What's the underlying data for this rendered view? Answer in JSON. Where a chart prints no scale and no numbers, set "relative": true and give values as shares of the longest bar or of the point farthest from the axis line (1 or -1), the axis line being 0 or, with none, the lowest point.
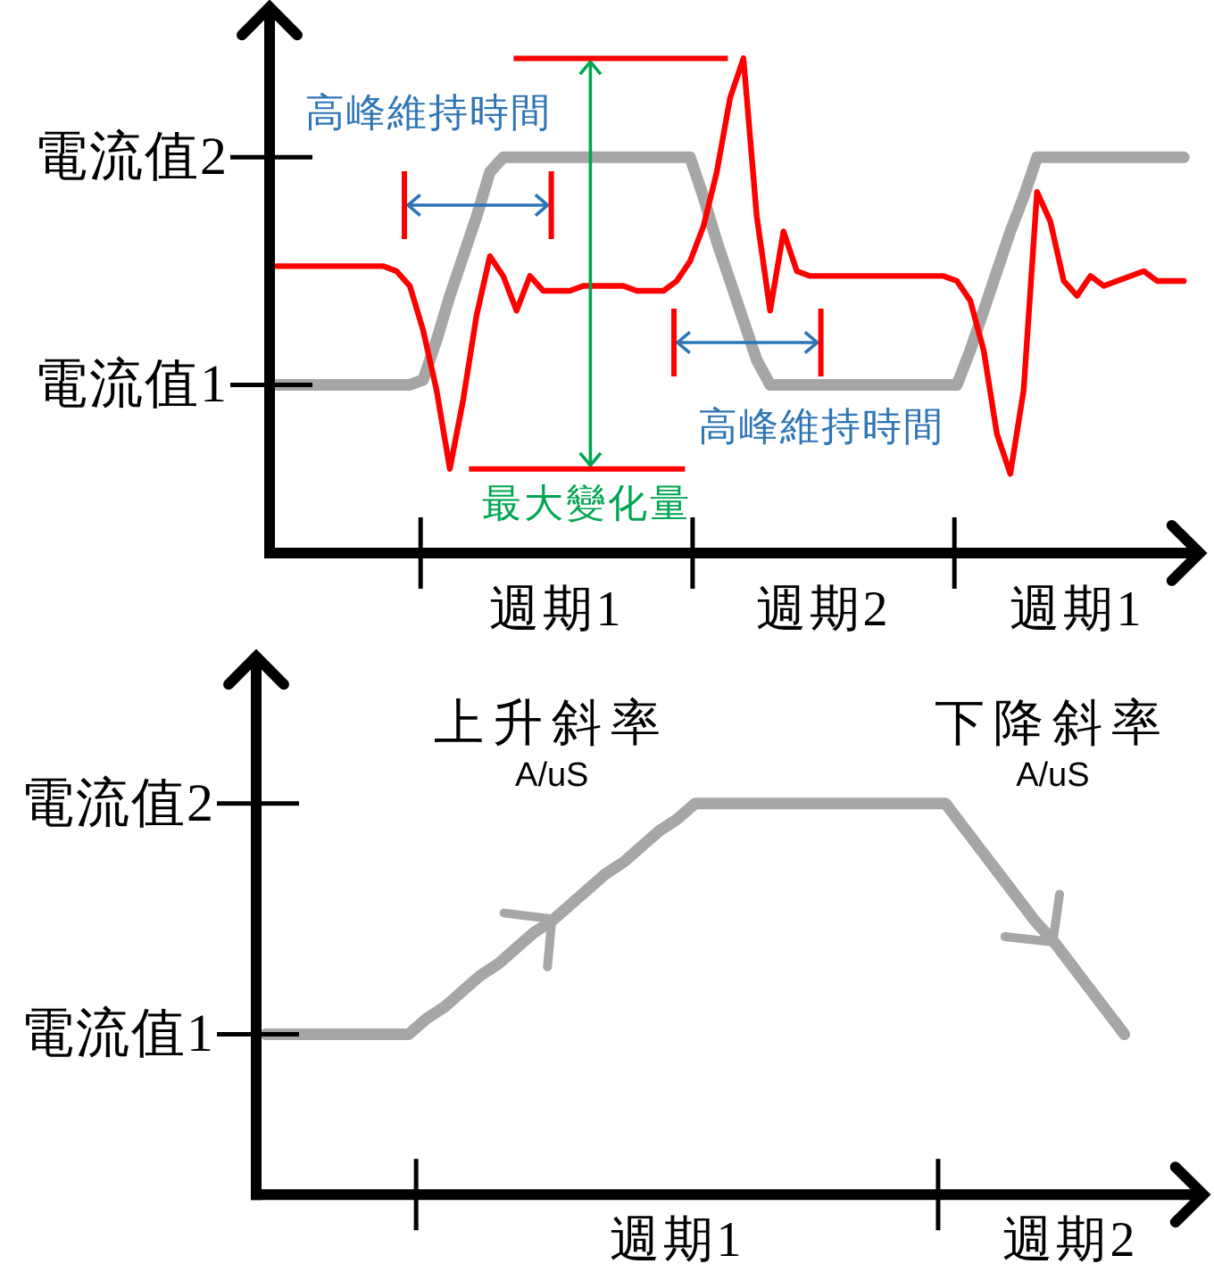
{
  "chart_data": [
    {
      "type": "line",
      "relative": true,
      "categories": [
        null,
        null,
        null,
        null,
        null,
        null,
        null,
        null,
        null,
        null,
        null,
        null,
        null,
        null,
        null,
        null,
        null,
        null,
        null,
        null,
        null,
        "週期1",
        null,
        null,
        null,
        null,
        null,
        null,
        null,
        null,
        null,
        null,
        null,
        null,
        null,
        null,
        null,
        null,
        null,
        null,
        null,
        "週期2",
        null,
        null,
        null,
        null,
        null,
        null,
        null,
        null,
        null,
        null,
        null,
        null,
        null,
        null,
        null,
        null,
        null,
        null,
        "週期1",
        null,
        null,
        null,
        null,
        null,
        null,
        null,
        null
      ],
      "series": [
        {
          "color": "#a6a6a6",
          "values": [
            0.34,
            0.34,
            0.34,
            0.34,
            0.34,
            0.34,
            0.34,
            0.34,
            0.34,
            0.34,
            0.34,
            0.35,
            0.43,
            0.52,
            0.6,
            0.68,
            0.77,
            0.8,
            0.8,
            0.8,
            0.8,
            0.8,
            0.8,
            0.8,
            0.8,
            0.8,
            0.8,
            0.8,
            0.8,
            0.8,
            0.8,
            0.8,
            0.72,
            0.63,
            0.55,
            0.47,
            0.39,
            0.34,
            0.34,
            0.34,
            0.34,
            0.34,
            0.34,
            0.34,
            0.34,
            0.34,
            0.34,
            0.34,
            0.34,
            0.34,
            0.34,
            0.34,
            0.41,
            0.49,
            0.57,
            0.65,
            0.72,
            0.8,
            0.8,
            0.8,
            0.8,
            0.8,
            0.8,
            0.8,
            0.8,
            0.8,
            0.8,
            0.8,
            0.8
          ]
        },
        {
          "color": "#ff0000",
          "values": [
            0.58,
            0.58,
            0.58,
            0.58,
            0.58,
            0.58,
            0.58,
            0.58,
            0.58,
            0.57,
            0.54,
            0.45,
            0.33,
            0.17,
            0.31,
            0.48,
            0.6,
            0.56,
            0.49,
            0.56,
            0.53,
            0.53,
            0.53,
            0.54,
            0.54,
            0.54,
            0.54,
            0.53,
            0.53,
            0.53,
            0.55,
            0.59,
            0.66,
            0.77,
            0.92,
            1,
            0.68,
            0.49,
            0.65,
            0.57,
            0.56,
            0.56,
            0.56,
            0.56,
            0.56,
            0.56,
            0.56,
            0.56,
            0.56,
            0.56,
            0.56,
            0.55,
            0.51,
            0.41,
            0.24,
            0.16,
            0.33,
            0.73,
            0.67,
            0.55,
            0.52,
            0.56,
            0.54,
            0.55,
            0.56,
            0.57,
            0.55,
            0.55,
            0.55
          ]
        }
      ],
      "annotations": [
        "電流值1",
        "電流值2",
        "高峰維持時間",
        "高峰維持時間",
        "最大變化量"
      ]
    },
    {
      "type": "line",
      "relative": true,
      "categories": [
        null,
        null,
        null,
        null,
        null,
        null,
        null,
        null,
        null,
        null,
        null,
        null,
        null,
        null,
        null,
        null,
        null,
        null,
        null,
        null,
        null,
        null,
        null,
        "週期1",
        null,
        null,
        null,
        null,
        null,
        null,
        null,
        null,
        null,
        null,
        null,
        null,
        null,
        null,
        null,
        null,
        null,
        null,
        null,
        null,
        null,
        "週期2",
        null,
        null,
        null
      ],
      "series": [
        {
          "color": "#a6a6a6",
          "values": [
            0.41,
            0.41,
            0.41,
            0.41,
            0.41,
            0.41,
            0.41,
            0.41,
            0.41,
            0.45,
            0.48,
            0.52,
            0.56,
            0.59,
            0.63,
            0.67,
            0.7,
            0.74,
            0.78,
            0.82,
            0.85,
            0.89,
            0.93,
            0.96,
            1,
            1,
            1,
            1,
            1,
            1,
            1,
            1,
            1,
            1,
            1,
            1,
            1,
            1,
            1,
            0.94,
            0.88,
            0.82,
            0.76,
            0.7,
            0.65,
            0.59,
            0.53,
            0.47,
            0.41
          ]
        }
      ],
      "annotations": [
        "電流值1",
        "電流值2",
        "上升斜率\nA/uS",
        "下降斜率\nA/uS"
      ]
    }
  ]
}
